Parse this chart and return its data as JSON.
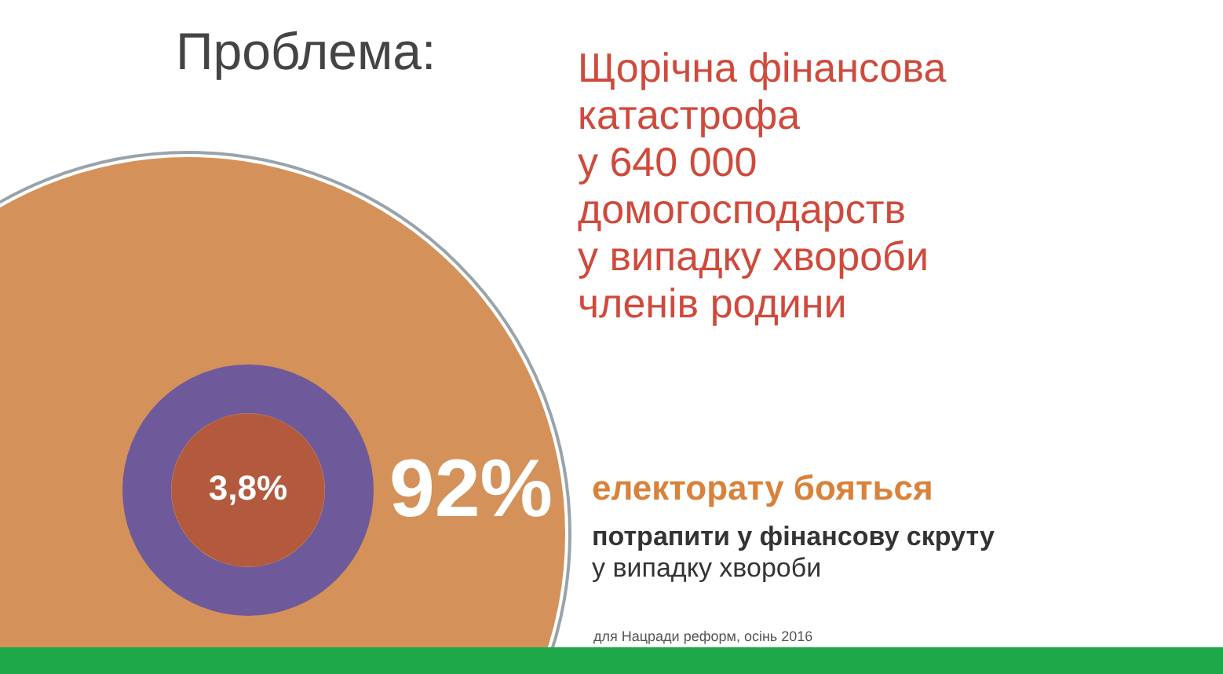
{
  "chart_data": {
    "type": "other",
    "title": "Проблема:",
    "subtitle": "Щорічна фінансова\nкатастрофа\nу 640 000\nдомогосподарств\nу випадку хвороби\nчленів родини",
    "categories": [
      null,
      null
    ],
    "values": [
      92,
      3.8
    ],
    "colors": [
      "#d4925a",
      "#b35a3e"
    ],
    "value_labels": [
      "92%",
      "3,8%"
    ],
    "annotations": [
      "електорату бояться",
      "потрапити у фінансову скруту",
      "у випадку хвороби",
      "для Нацради реформ, осінь 2016"
    ]
  }
}
